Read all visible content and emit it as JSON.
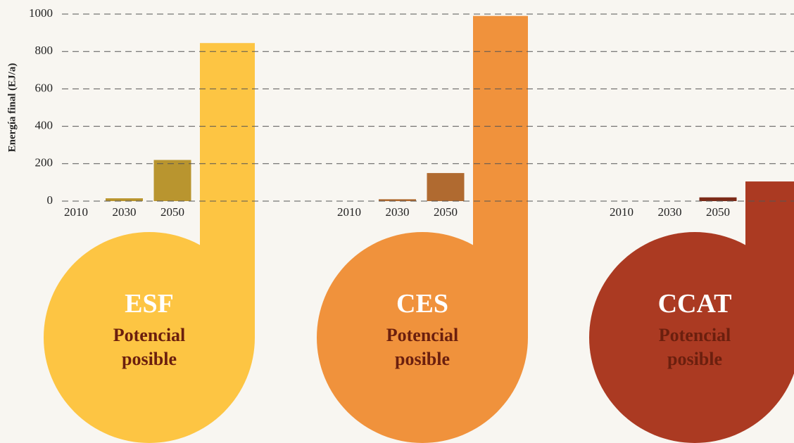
{
  "chart_data": {
    "type": "bar",
    "ylabel": "Energía final (EJ/a)",
    "ylim": [
      0,
      1000
    ],
    "yticks": [
      0,
      200,
      400,
      600,
      800,
      1000
    ],
    "grid": true,
    "categories": [
      "2010",
      "2030",
      "2050"
    ],
    "groups": [
      {
        "name": "ESF",
        "label": "Potencial posible",
        "values": [
          0,
          15,
          220
        ],
        "potential": 845,
        "color": "#b9952f",
        "potential_color": "#fdc543"
      },
      {
        "name": "CES",
        "label": "Potencial posible",
        "values": [
          0,
          10,
          150
        ],
        "potential": 990,
        "color": "#b06a30",
        "potential_color": "#f0923c"
      },
      {
        "name": "CCAT",
        "label": "Potencial posible",
        "values": [
          0,
          0,
          20
        ],
        "potential": 105,
        "color": "#7b2a17",
        "potential_color": "#ab3a22"
      }
    ]
  }
}
